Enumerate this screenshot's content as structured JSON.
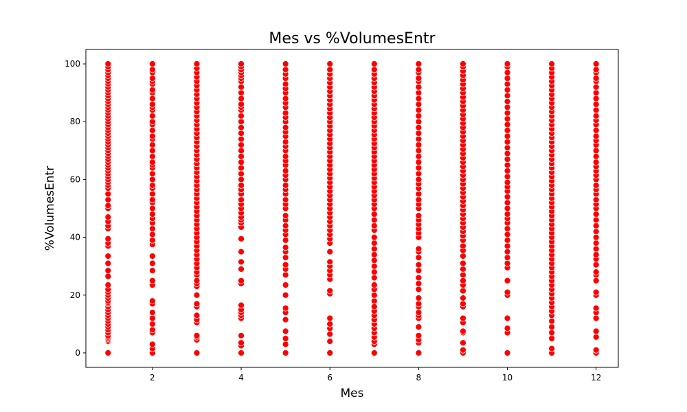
{
  "chart_data": {
    "type": "scatter",
    "title": "Mes vs %VolumesEntr",
    "xlabel": "Mes",
    "ylabel": "%VolumesEntr",
    "xlim": [
      0.5,
      12.5
    ],
    "ylim": [
      -5,
      105
    ],
    "xticks": [
      2,
      4,
      6,
      8,
      10,
      12
    ],
    "yticks": [
      0,
      20,
      40,
      60,
      80,
      100
    ],
    "grid": false,
    "marker_color": "#ff0000",
    "marker_edge_color": "#ffffff",
    "series": [
      {
        "points": [
          {
            "x": 1,
            "y": [
              0,
              4,
              4.5,
              5,
              5.5,
              6,
              7,
              8,
              9,
              10,
              11,
              12,
              13,
              14,
              15,
              16,
              17,
              17.5,
              18,
              19,
              20,
              21,
              22,
              23.5,
              26.5,
              28.5,
              31,
              33.5,
              37,
              38,
              39.5,
              43,
              44,
              45.5,
              47,
              50,
              51,
              53,
              55,
              57,
              58,
              59,
              60,
              61,
              62,
              63,
              64,
              65,
              66,
              67,
              68,
              69,
              70,
              71,
              72,
              73,
              74,
              75,
              76,
              77,
              78,
              79,
              80,
              81,
              82,
              83,
              84,
              85,
              86,
              87,
              88,
              89,
              90,
              91,
              92,
              93,
              94,
              95,
              96,
              97,
              98,
              99,
              100
            ]
          },
          {
            "x": 2,
            "y": [
              0,
              1.5,
              3,
              7,
              8,
              10,
              12,
              14,
              17,
              18,
              23.5,
              25,
              28.5,
              31,
              33.5,
              37.5,
              39,
              41,
              43,
              45,
              46.5,
              48,
              50,
              52,
              53,
              55,
              57,
              58,
              60,
              62,
              64,
              65,
              66,
              68,
              70,
              72,
              74,
              75,
              77,
              79,
              80,
              82,
              84,
              85,
              86,
              88,
              90,
              91,
              93,
              94,
              95,
              97,
              98,
              100
            ]
          },
          {
            "x": 3,
            "y": [
              0,
              4.5,
              5.5,
              6,
              10.5,
              11.5,
              13,
              16,
              17,
              20,
              23,
              24,
              25,
              27,
              28,
              29.5,
              31,
              32.5,
              34,
              35.5,
              37,
              38.5,
              40,
              41.5,
              43,
              44.5,
              46,
              47.5,
              49,
              50.5,
              52,
              53.5,
              55,
              56.5,
              58,
              59.5,
              61,
              62.5,
              64,
              65.5,
              67,
              68.5,
              70,
              71.5,
              73,
              74.5,
              76,
              77.5,
              79,
              80.5,
              82,
              83.5,
              85,
              86.5,
              88,
              89.5,
              91,
              92.5,
              94,
              95.5,
              97,
              98.5,
              100
            ]
          },
          {
            "x": 4,
            "y": [
              0,
              2.5,
              3.5,
              6,
              12,
              13,
              14,
              15,
              16.5,
              24,
              25,
              29,
              31.5,
              35,
              39.5,
              43.5,
              45,
              46,
              47,
              48.5,
              50,
              51.5,
              53,
              55,
              56.5,
              58,
              60,
              62,
              64,
              66,
              68,
              70,
              72,
              74,
              76,
              78,
              80,
              82,
              84,
              85,
              86,
              88,
              90,
              92,
              94,
              95,
              96,
              97,
              98,
              99,
              100
            ]
          },
          {
            "x": 5,
            "y": [
              0,
              3,
              5,
              7.5,
              11.5,
              14,
              15.5,
              20,
              23.5,
              27,
              29,
              30.5,
              33,
              35,
              36.5,
              39,
              41,
              42.5,
              44,
              46,
              47.5,
              50,
              51.5,
              53,
              55,
              56.5,
              58,
              60,
              61.5,
              63,
              65,
              66.5,
              68,
              70,
              71.5,
              73,
              75,
              76.5,
              78,
              80,
              81.5,
              83,
              85,
              86.5,
              88,
              90,
              91.5,
              93,
              95,
              96.5,
              98,
              100
            ]
          },
          {
            "x": 6,
            "y": [
              0,
              4,
              6.5,
              8.5,
              10,
              12,
              20.5,
              21.5,
              25.5,
              27,
              28.5,
              30,
              31.5,
              35,
              38,
              39.5,
              41,
              42.5,
              44,
              45.5,
              47,
              48.5,
              50,
              51.5,
              53,
              54.5,
              56,
              57.5,
              59,
              60.5,
              62,
              63.5,
              65,
              66.5,
              68,
              69.5,
              71,
              72.5,
              74,
              75.5,
              77,
              78.5,
              80,
              81.5,
              83,
              84.5,
              86,
              87.5,
              89,
              90.5,
              92,
              93.5,
              95,
              96.5,
              98,
              100
            ]
          },
          {
            "x": 7,
            "y": [
              0,
              3,
              4,
              5.5,
              7,
              8.5,
              10,
              11.5,
              13,
              14.5,
              16,
              18,
              20,
              22,
              23.5,
              26,
              28,
              30,
              32,
              34,
              36,
              38,
              40,
              42.5,
              44,
              46,
              48,
              50,
              51.5,
              53,
              54.5,
              56,
              57.5,
              59,
              60.5,
              62,
              63.5,
              65,
              66.5,
              68,
              69.5,
              71,
              72.5,
              74,
              75.5,
              77,
              78.5,
              80,
              81.5,
              83,
              84.5,
              86,
              87.5,
              89,
              90.5,
              92,
              93.5,
              95,
              96.5,
              98,
              100
            ]
          },
          {
            "x": 8,
            "y": [
              0,
              3.5,
              4.5,
              6,
              9,
              12,
              13,
              14,
              16,
              17,
              19,
              22,
              24,
              26,
              28.5,
              30.5,
              33,
              35,
              36,
              40,
              41.5,
              43,
              44.5,
              46,
              47.5,
              50,
              51.5,
              53,
              55,
              57,
              58.5,
              60,
              62,
              64,
              66,
              68,
              70,
              72,
              74,
              76,
              78,
              80,
              82,
              84,
              86,
              88,
              90,
              92,
              94,
              95,
              97,
              98,
              100
            ]
          },
          {
            "x": 9,
            "y": [
              0,
              1,
              3.5,
              7,
              7.5,
              10.5,
              12,
              16,
              17,
              19,
              21.5,
              23.5,
              25,
              27,
              29,
              31,
              33.5,
              35.5,
              37,
              39,
              40.5,
              42,
              43.5,
              45,
              46.5,
              48,
              49.5,
              51,
              52.5,
              54,
              55.5,
              57,
              58.5,
              60,
              61.5,
              63,
              64.5,
              66,
              67.5,
              69,
              70.5,
              72,
              73.5,
              75,
              76.5,
              78,
              79.5,
              81,
              82.5,
              84,
              85.5,
              87,
              88.5,
              90,
              91.5,
              93,
              94.5,
              96,
              97.5,
              99,
              100
            ]
          },
          {
            "x": 10,
            "y": [
              0,
              7,
              8.5,
              12,
              20,
              21,
              25,
              29.5,
              31,
              33,
              35,
              37,
              39,
              41,
              43,
              45,
              46.5,
              48,
              50,
              52,
              54,
              56,
              57.5,
              59,
              61,
              63,
              65,
              67,
              69,
              71,
              73,
              75,
              77,
              79,
              81,
              83,
              85,
              87,
              89,
              91,
              93,
              95,
              97,
              99,
              100
            ]
          },
          {
            "x": 11,
            "y": [
              0,
              1.5,
              5,
              7,
              9,
              11,
              13,
              14.5,
              16,
              17.5,
              19,
              20.5,
              22,
              23.5,
              25,
              26.5,
              28,
              29.5,
              31,
              32.5,
              34,
              35.5,
              37,
              38.5,
              40,
              41.5,
              43,
              44.5,
              46,
              47.5,
              49,
              50.5,
              52,
              53.5,
              55,
              56.5,
              58,
              59.5,
              61,
              62.5,
              64,
              65.5,
              67,
              68.5,
              70,
              71.5,
              73,
              74.5,
              76,
              77.5,
              79,
              80.5,
              82,
              83.5,
              85,
              86.5,
              88,
              89.5,
              91,
              92.5,
              94,
              95.5,
              97,
              98.5,
              100
            ]
          },
          {
            "x": 12,
            "y": [
              0,
              1,
              5.5,
              7.5,
              12,
              14,
              15.5,
              20,
              21,
              25,
              27,
              28,
              30.5,
              32.5,
              34,
              36,
              38,
              40,
              42,
              44,
              46,
              48,
              50,
              51.5,
              53,
              55,
              56.5,
              58,
              60,
              61.5,
              63,
              64.5,
              66,
              68,
              70,
              72,
              73.5,
              75,
              77,
              79,
              80.5,
              82,
              84,
              86,
              88,
              90,
              92,
              94,
              95,
              97,
              98,
              100
            ]
          }
        ]
      }
    ]
  }
}
